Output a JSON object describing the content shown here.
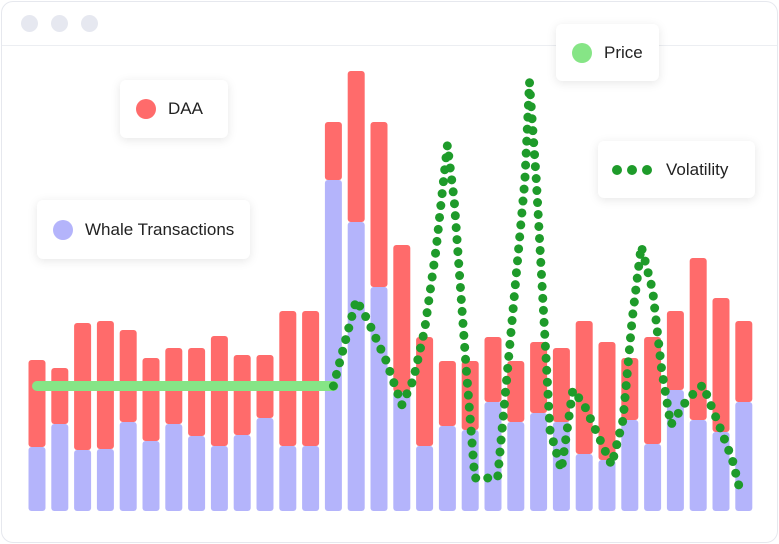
{
  "chart_data": {
    "type": "bar",
    "stacked": true,
    "categories": [
      null,
      null,
      null,
      null,
      null,
      null,
      null,
      null,
      null,
      null,
      null,
      null,
      null,
      null,
      null,
      null,
      null,
      null,
      null,
      null,
      null,
      null,
      null,
      null,
      null,
      null,
      null,
      null,
      null,
      null,
      null,
      null
    ],
    "ylim": [
      0,
      450
    ],
    "series": [
      {
        "name": "Whale Transactions",
        "color": "#b4b4fb",
        "values": [
          64,
          87,
          61,
          62,
          89,
          70,
          87,
          75,
          65,
          76,
          93,
          65,
          65,
          331,
          289,
          224,
          119,
          65,
          85,
          81,
          109,
          89,
          98,
          89,
          57,
          51,
          91,
          67,
          121,
          91,
          79,
          109
        ]
      },
      {
        "name": "DAA",
        "color": "#ff6b6b",
        "values": [
          87,
          56,
          127,
          128,
          92,
          83,
          76,
          88,
          110,
          80,
          63,
          135,
          135,
          58,
          151,
          165,
          147,
          109,
          65,
          69,
          65,
          61,
          71,
          74,
          133,
          118,
          62,
          107,
          79,
          162,
          134,
          81
        ]
      },
      {
        "name": "Price",
        "type": "line",
        "color": "#86e586",
        "values": [
          125,
          125,
          125,
          125,
          125,
          125,
          125,
          125,
          125,
          125,
          125,
          125,
          125,
          125,
          null,
          null,
          null,
          null,
          null,
          null,
          null,
          null,
          null,
          null,
          null,
          null,
          null,
          null,
          null,
          null,
          null,
          null
        ]
      },
      {
        "name": "Volatility",
        "type": "line",
        "style": "dotted",
        "color": "#1e9b2a",
        "x": [
          13,
          14,
          14.5,
          15.3,
          16,
          16.5,
          17,
          17.5,
          18,
          18.3,
          18.8,
          19.2,
          20.2,
          20.8,
          21.4,
          21.6,
          21.9,
          22.5,
          23,
          23.5,
          24,
          24.5,
          25.2,
          25.7,
          26.1,
          26.5,
          27,
          27.4,
          27.8,
          28.5,
          29.2,
          30,
          30.5,
          30.8
        ],
        "values": [
          125,
          211,
          191,
          151,
          106,
          131,
          181,
          261,
          366,
          311,
          151,
          33,
          33,
          181,
          331,
          429,
          331,
          81,
          41,
          121,
          106,
          81,
          46,
          91,
          191,
          265,
          221,
          141,
          86,
          111,
          126,
          81,
          51,
          24
        ]
      }
    ]
  }
}
